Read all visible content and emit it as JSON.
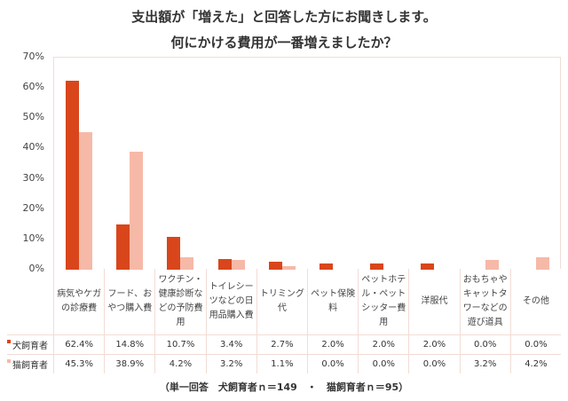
{
  "chart_data": {
    "type": "bar",
    "title": "支出額が「増えた」と回答した方にお聞きします。",
    "subtitle": "何にかける費用が一番増えましたか？",
    "categories": [
      "病気やケガの診療費",
      "フード、おやつ購入費",
      "ワクチン・健康診断などの予防費用",
      "トイレシーツなどの日用品購入費",
      "トリミング代",
      "ペット保険料",
      "ペットホテル・ペットシッター費用",
      "洋服代",
      "おもちゃやキャットタワーなどの遊び道具",
      "その他"
    ],
    "series": [
      {
        "name": "犬飼育者",
        "color": "#d9461b",
        "values": [
          62.4,
          14.8,
          10.7,
          3.4,
          2.7,
          2.0,
          2.0,
          2.0,
          0.0,
          0.0
        ],
        "labels": [
          "62.4%",
          "14.8%",
          "10.7%",
          "3.4%",
          "2.7%",
          "2.0%",
          "2.0%",
          "2.0%",
          "0.0%",
          "0.0%"
        ]
      },
      {
        "name": "猫飼育者",
        "color": "#f6b9a8",
        "values": [
          45.3,
          38.9,
          4.2,
          3.2,
          1.1,
          0.0,
          0.0,
          0.0,
          3.2,
          4.2
        ],
        "labels": [
          "45.3%",
          "38.9%",
          "4.2%",
          "3.2%",
          "1.1%",
          "0.0%",
          "0.0%",
          "0.0%",
          "3.2%",
          "4.2%"
        ]
      }
    ],
    "ylim": [
      0,
      70
    ],
    "yticks": [
      "0%",
      "10%",
      "20%",
      "30%",
      "40%",
      "50%",
      "60%",
      "70%"
    ],
    "legend": "data-table"
  },
  "footnote": "（単一回答　犬飼育者ｎ＝149　・　猫飼育者ｎ＝95）"
}
